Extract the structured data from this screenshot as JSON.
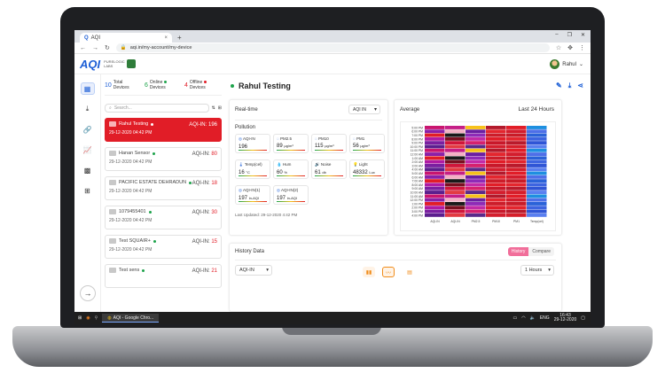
{
  "browser": {
    "tab_title": "AQI",
    "tab_close": "×",
    "new_tab": "+",
    "win_controls": [
      "–",
      "❐",
      "✕"
    ],
    "url": "aqi.in/my-account/my-device"
  },
  "app": {
    "logo": "AQI",
    "brand_line1": "PURELOGIC",
    "brand_line2": "LABS",
    "user_name": "Rahul"
  },
  "stats": [
    {
      "count": "10",
      "label1": "Total",
      "label2": "Devices",
      "color": "#1d5fd6"
    },
    {
      "count": "6",
      "label1": "Online",
      "label2": "Devices",
      "color": "#1ea34b"
    },
    {
      "count": "4",
      "label1": "Offline",
      "label2": "Devices",
      "color": "#e11d27"
    }
  ],
  "search_placeholder": "Search...",
  "devices": [
    {
      "name": "Rahul Testing",
      "aqi_label": "AQI-IN:",
      "aqi": "196",
      "date": "29-12-2020 04:42 PM",
      "active": true
    },
    {
      "name": "Hanan Sensor",
      "aqi_label": "AQI-IN:",
      "aqi": "80",
      "date": "29-12-2020 04:42 PM"
    },
    {
      "name": "PACIFIC ESTATE DEHRADUN",
      "aqi_label": "AQI-IN:",
      "aqi": "18",
      "date": "29-12-2020 04:42 PM"
    },
    {
      "name": "1079455401",
      "aqi_label": "AQI-IN:",
      "aqi": "30",
      "date": "29-12-2020 04:42 PM"
    },
    {
      "name": "Test SQUAIR+",
      "aqi_label": "AQI-IN:",
      "aqi": "15",
      "date": "29-12-2020 04:42 PM"
    },
    {
      "name": "Test sens",
      "aqi_label": "AQI-IN:",
      "aqi": "21",
      "date": ""
    }
  ],
  "device_title": "Rahul Testing",
  "realtime": {
    "label": "Real-time",
    "select": "AQI IN",
    "pollution_label": "Pollution",
    "tiles": [
      {
        "name": "AQI-IN",
        "value": "196",
        "unit": ""
      },
      {
        "name": "PM2.5",
        "value": "89",
        "unit": "µg/m³"
      },
      {
        "name": "PM10",
        "value": "115",
        "unit": "µg/m³"
      },
      {
        "name": "PM1",
        "value": "56",
        "unit": "µg/m³"
      },
      {
        "name": "Temp(cel)",
        "value": "16",
        "unit": "°C"
      },
      {
        "name": "Hum",
        "value": "60",
        "unit": "%"
      },
      {
        "name": "Noise",
        "value": "61",
        "unit": "db"
      },
      {
        "name": "Light",
        "value": "48332",
        "unit": "Lux"
      },
      {
        "name": "AQI-IN(1)",
        "value": "197",
        "unit": "in-AQI"
      },
      {
        "name": "AQI-IN(2)",
        "value": "197",
        "unit": "in-AQI"
      }
    ],
    "updated": "Last Updated: 29-12-2020 4:42 PM"
  },
  "average": {
    "label": "Average",
    "range": "Last 24 Hours",
    "times": [
      "5:00 PM",
      "6:00 PM",
      "7:00 PM",
      "8:00 PM",
      "9:00 PM",
      "10:00 PM",
      "11:00 PM",
      "12:00 AM",
      "1:00 AM",
      "2:00 AM",
      "3:00 AM",
      "4:00 AM",
      "5:00 AM",
      "6:00 AM",
      "7:00 AM",
      "8:00 AM",
      "9:00 AM",
      "10:00 AM",
      "11:00 AM",
      "12:00 PM",
      "1:00 PM",
      "2:00 PM",
      "3:00 PM",
      "4:00 PM"
    ],
    "columns": [
      "AQI-IN",
      "AQI-IN",
      "PM2.5",
      "PM10",
      "PM1",
      "Temp(cel)"
    ]
  },
  "history": {
    "label": "History Data",
    "toggle": [
      "History",
      "Compare"
    ],
    "select": "AQI-IN",
    "range": "1 Hours"
  },
  "taskbar": {
    "chrome_label": "AQI - Google Chro...",
    "lang": "ENG",
    "time": "16:43",
    "date": "29-12-2020"
  },
  "colors": {
    "accent": "#1d5fd6",
    "danger": "#e11d27",
    "online": "#1ea34b"
  }
}
